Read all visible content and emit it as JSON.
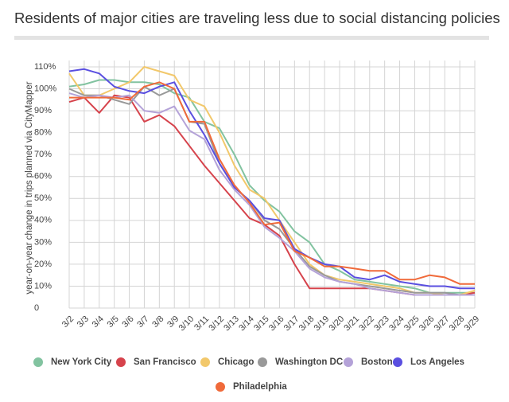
{
  "chart_data": {
    "type": "line",
    "title": "Residents of major cities are traveling less due to social distancing policies",
    "y_label": "year-on-year change in trips planned via CityMapper",
    "categories": [
      "3/2",
      "3/3",
      "3/4",
      "3/5",
      "3/6",
      "3/7",
      "3/8",
      "3/9",
      "3/10",
      "3/11",
      "3/12",
      "3/13",
      "3/14",
      "3/15",
      "3/16",
      "3/17",
      "3/18",
      "3/19",
      "3/20",
      "3/21",
      "3/22",
      "3/23",
      "3/24",
      "3/25",
      "3/26",
      "3/27",
      "3/28",
      "3/29"
    ],
    "ylim": [
      0,
      110
    ],
    "yticks": [
      0,
      {
        "value": 10,
        "label": "10%"
      },
      {
        "value": 20,
        "label": "20%"
      },
      {
        "value": 30,
        "label": "30%"
      },
      {
        "value": 40,
        "label": "40%"
      },
      {
        "value": 50,
        "label": "50%"
      },
      {
        "value": 60,
        "label": "60%"
      },
      {
        "value": 70,
        "label": "70%"
      },
      {
        "value": 80,
        "label": "80%"
      },
      {
        "value": 90,
        "label": "90%"
      },
      {
        "value": 100,
        "label": "100%"
      },
      {
        "value": 110,
        "label": "110%"
      }
    ],
    "grid": true,
    "series": [
      {
        "name": "New York City",
        "color": "#82c3a0",
        "values": [
          101,
          102,
          104,
          104,
          103,
          103,
          102,
          98,
          96,
          85,
          82,
          70,
          56,
          49,
          44,
          35,
          30,
          20,
          17,
          13,
          12,
          11,
          10,
          9,
          7,
          7,
          7,
          7
        ]
      },
      {
        "name": "San Francisco",
        "color": "#d6434c",
        "values": [
          94,
          96,
          89,
          97,
          96,
          85,
          88,
          83,
          74,
          65,
          57,
          49,
          41,
          38,
          33,
          20,
          9,
          9,
          9,
          9,
          9,
          8,
          7,
          6,
          6,
          6,
          6,
          7
        ]
      },
      {
        "name": "Chicago",
        "color": "#f2c86b",
        "values": [
          107,
          97,
          97,
          100,
          103,
          110,
          108,
          106,
          95,
          92,
          80,
          65,
          54,
          50,
          40,
          30,
          20,
          15,
          13,
          12,
          11,
          10,
          9,
          7,
          7,
          6,
          6,
          8
        ]
      },
      {
        "name": "Washington DC",
        "color": "#999999",
        "values": [
          100,
          97,
          97,
          95,
          93,
          101,
          97,
          100,
          85,
          84,
          66,
          55,
          49,
          40,
          36,
          27,
          19,
          15,
          12,
          11,
          10,
          9,
          8,
          7,
          7,
          7,
          6,
          6
        ]
      },
      {
        "name": "Boston",
        "color": "#b4a2d8",
        "values": [
          98,
          96,
          97,
          96,
          97,
          90,
          89,
          92,
          81,
          77,
          63,
          54,
          47,
          37,
          32,
          26,
          18,
          14,
          12,
          11,
          9,
          8,
          7,
          6,
          6,
          6,
          6,
          6
        ]
      },
      {
        "name": "Los Angeles",
        "color": "#5a4fe0",
        "values": [
          108,
          109,
          107,
          101,
          99,
          98,
          101,
          103,
          90,
          79,
          66,
          55,
          49,
          41,
          40,
          27,
          23,
          20,
          19,
          14,
          13,
          15,
          12,
          11,
          10,
          10,
          9,
          9
        ]
      },
      {
        "name": "Philadelphia",
        "color": "#f06a3a",
        "values": [
          96,
          96,
          96,
          96,
          95,
          101,
          103,
          100,
          85,
          85,
          68,
          56,
          48,
          38,
          39,
          26,
          23,
          19,
          19,
          18,
          17,
          17,
          13,
          13,
          15,
          14,
          11,
          11
        ]
      }
    ]
  }
}
